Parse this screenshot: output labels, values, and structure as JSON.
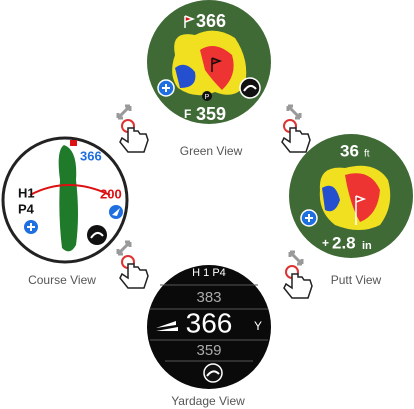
{
  "green_view": {
    "label": "Green View",
    "flag_distance": 366,
    "front_marker": "F",
    "front_distance": 359,
    "pin_marker": "P"
  },
  "course_view": {
    "label": "Course View",
    "flag_distance": 366,
    "hole": "H1",
    "par": "P4",
    "layup_distance": 200
  },
  "putt_view": {
    "label": "Putt View",
    "distance": 36,
    "distance_unit": "ft",
    "break_sign": "+",
    "break": 2.8,
    "break_unit": "in"
  },
  "yardage_view": {
    "label": "Yardage View",
    "hole_info": "H 1 P4",
    "back_distance": 383,
    "middle_distance": 366,
    "unit": "Y",
    "front_distance": 359
  }
}
